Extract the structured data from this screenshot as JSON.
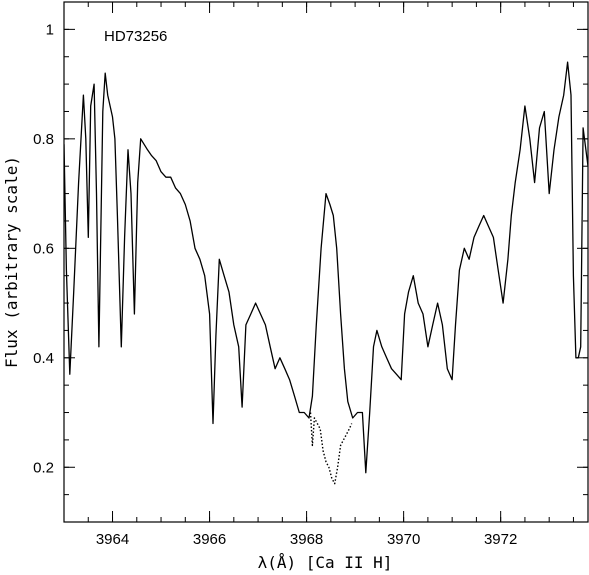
{
  "chart_data": {
    "type": "line",
    "title": "",
    "annotation": "HD73256",
    "xlabel": "λ(Å) [Ca II H]",
    "ylabel": "Flux (arbitrary scale)",
    "xlim": [
      3963.0,
      3973.8
    ],
    "ylim": [
      0.1,
      1.05
    ],
    "x_ticks": [
      3964,
      3966,
      3968,
      3970,
      3972
    ],
    "x_tick_labels": [
      "3964",
      "3966",
      "3968",
      "3970",
      "3972"
    ],
    "y_ticks": [
      0.2,
      0.4,
      0.6,
      0.8,
      1.0
    ],
    "y_tick_labels": [
      "0.2",
      "0.4",
      "0.6",
      "0.8",
      "1"
    ],
    "grid": false,
    "series": [
      {
        "style": "solid",
        "x": [
          3963.0,
          3963.05,
          3963.12,
          3963.2,
          3963.3,
          3963.4,
          3963.45,
          3963.5,
          3963.55,
          3963.62,
          3963.67,
          3963.72,
          3963.8,
          3963.85,
          3963.9,
          3963.95,
          3964.0,
          3964.05,
          3964.1,
          3964.18,
          3964.25,
          3964.32,
          3964.38,
          3964.45,
          3964.52,
          3964.58,
          3964.65,
          3964.72,
          3964.8,
          3964.9,
          3965.0,
          3965.1,
          3965.2,
          3965.3,
          3965.4,
          3965.5,
          3965.6,
          3965.7,
          3965.8,
          3965.9,
          3966.0,
          3966.07,
          3966.13,
          3966.2,
          3966.3,
          3966.4,
          3966.5,
          3966.6,
          3966.67,
          3966.75,
          3966.85,
          3966.95,
          3967.05,
          3967.15,
          3967.25,
          3967.35,
          3967.45,
          3967.55,
          3967.65,
          3967.75,
          3967.85,
          3967.95,
          3968.05,
          3968.12,
          3968.2,
          3968.3,
          3968.4,
          3968.48,
          3968.55,
          3968.62,
          3968.7,
          3968.78,
          3968.85,
          3968.95,
          3969.05,
          3969.15,
          3969.22,
          3969.3,
          3969.38,
          3969.45,
          3969.55,
          3969.65,
          3969.75,
          3969.85,
          3969.95,
          3970.02,
          3970.1,
          3970.2,
          3970.3,
          3970.4,
          3970.5,
          3970.6,
          3970.7,
          3970.8,
          3970.9,
          3971.0,
          3971.07,
          3971.15,
          3971.25,
          3971.35,
          3971.45,
          3971.55,
          3971.65,
          3971.75,
          3971.85,
          3971.95,
          3972.05,
          3972.15,
          3972.22,
          3972.3,
          3972.4,
          3972.5,
          3972.6,
          3972.7,
          3972.8,
          3972.9,
          3973.0,
          3973.1,
          3973.2,
          3973.3,
          3973.38,
          3973.45,
          3973.5,
          3973.55,
          3973.6,
          3973.65,
          3973.7,
          3973.8
        ],
        "y": [
          0.79,
          0.56,
          0.37,
          0.52,
          0.72,
          0.88,
          0.8,
          0.62,
          0.86,
          0.9,
          0.7,
          0.42,
          0.85,
          0.92,
          0.88,
          0.86,
          0.84,
          0.8,
          0.66,
          0.42,
          0.62,
          0.78,
          0.7,
          0.48,
          0.72,
          0.8,
          0.79,
          0.78,
          0.77,
          0.76,
          0.74,
          0.73,
          0.73,
          0.71,
          0.7,
          0.68,
          0.65,
          0.6,
          0.58,
          0.55,
          0.48,
          0.28,
          0.44,
          0.58,
          0.55,
          0.52,
          0.46,
          0.42,
          0.31,
          0.46,
          0.48,
          0.5,
          0.48,
          0.46,
          0.42,
          0.38,
          0.4,
          0.38,
          0.36,
          0.33,
          0.3,
          0.3,
          0.29,
          0.33,
          0.46,
          0.6,
          0.7,
          0.68,
          0.66,
          0.6,
          0.48,
          0.38,
          0.32,
          0.29,
          0.3,
          0.3,
          0.19,
          0.3,
          0.42,
          0.45,
          0.42,
          0.4,
          0.38,
          0.37,
          0.36,
          0.48,
          0.52,
          0.55,
          0.5,
          0.48,
          0.42,
          0.46,
          0.5,
          0.46,
          0.38,
          0.36,
          0.46,
          0.56,
          0.6,
          0.58,
          0.62,
          0.64,
          0.66,
          0.64,
          0.62,
          0.56,
          0.5,
          0.58,
          0.66,
          0.72,
          0.78,
          0.86,
          0.8,
          0.72,
          0.82,
          0.85,
          0.7,
          0.78,
          0.84,
          0.88,
          0.94,
          0.88,
          0.55,
          0.4,
          0.4,
          0.42,
          0.82,
          0.75
        ]
      },
      {
        "style": "dotted",
        "x": [
          3968.08,
          3968.12,
          3968.16,
          3968.22,
          3968.28,
          3968.34,
          3968.4,
          3968.46,
          3968.52,
          3968.58,
          3968.64,
          3968.7,
          3968.76,
          3968.82,
          3968.88,
          3968.93
        ],
        "y": [
          0.3,
          0.24,
          0.29,
          0.28,
          0.27,
          0.23,
          0.21,
          0.2,
          0.18,
          0.17,
          0.2,
          0.24,
          0.25,
          0.26,
          0.27,
          0.28
        ]
      }
    ]
  }
}
